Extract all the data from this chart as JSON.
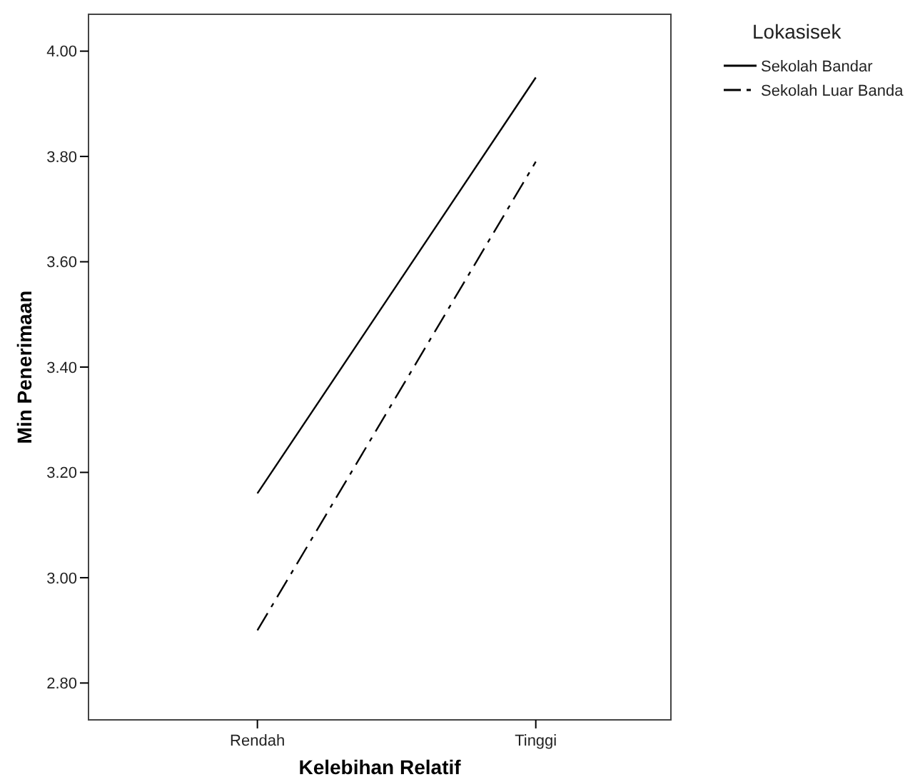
{
  "chart_data": {
    "type": "line",
    "xlabel": "Kelebihan Relatif",
    "ylabel": "Min Penerimaan",
    "legend_title": "Lokasisek",
    "categories": [
      "Rendah",
      "Tinggi"
    ],
    "series": [
      {
        "name": "Sekolah Bandar",
        "color": "#000000",
        "values": [
          3.16,
          3.95
        ],
        "line_style": "solid"
      },
      {
        "name": "Sekolah Luar Banda",
        "color": "#000000",
        "values": [
          2.9,
          3.79
        ],
        "line_style": "dashdot"
      }
    ],
    "ylim": [
      2.73,
      4.07
    ],
    "yticks": [
      {
        "value": 2.8,
        "label": "2.80"
      },
      {
        "value": 3.0,
        "label": "3.00"
      },
      {
        "value": 3.2,
        "label": "3.20"
      },
      {
        "value": 3.4,
        "label": "3.40"
      },
      {
        "value": 3.6,
        "label": "3.60"
      },
      {
        "value": 3.8,
        "label": "3.80"
      },
      {
        "value": 4.0,
        "label": "4.00"
      }
    ],
    "grid": false,
    "legend": "top right",
    "marker": "none"
  }
}
